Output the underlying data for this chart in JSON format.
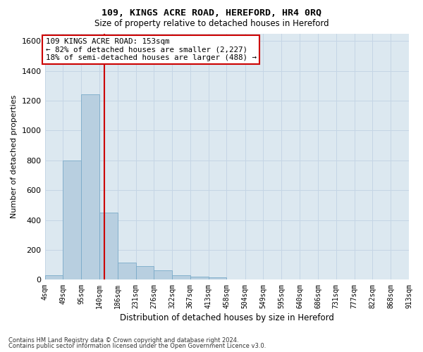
{
  "title": "109, KINGS ACRE ROAD, HEREFORD, HR4 0RQ",
  "subtitle": "Size of property relative to detached houses in Hereford",
  "xlabel": "Distribution of detached houses by size in Hereford",
  "ylabel": "Number of detached properties",
  "footer_line1": "Contains HM Land Registry data © Crown copyright and database right 2024.",
  "footer_line2": "Contains public sector information licensed under the Open Government Licence v3.0.",
  "annotation_line1": "109 KINGS ACRE ROAD: 153sqm",
  "annotation_line2": "← 82% of detached houses are smaller (2,227)",
  "annotation_line3": "18% of semi-detached houses are larger (488) →",
  "property_size": 153,
  "bar_edges": [
    4,
    49,
    95,
    140,
    186,
    231,
    276,
    322,
    367,
    413,
    458,
    504,
    549,
    595,
    640,
    686,
    731,
    777,
    822,
    868,
    913
  ],
  "bar_heights": [
    30,
    800,
    1240,
    450,
    115,
    90,
    65,
    30,
    20,
    15,
    0,
    0,
    0,
    0,
    0,
    0,
    0,
    0,
    0,
    0
  ],
  "bar_color": "#b8cfe0",
  "bar_edge_color": "#7aaac8",
  "grid_color": "#c5d5e5",
  "bg_color": "#dce8f0",
  "vline_color": "#cc0000",
  "annotation_box_edge_color": "#cc0000",
  "ylim": [
    0,
    1650
  ],
  "yticks": [
    0,
    200,
    400,
    600,
    800,
    1000,
    1200,
    1400,
    1600
  ],
  "tick_labels": [
    "4sqm",
    "49sqm",
    "95sqm",
    "140sqm",
    "186sqm",
    "231sqm",
    "276sqm",
    "322sqm",
    "367sqm",
    "413sqm",
    "458sqm",
    "504sqm",
    "549sqm",
    "595sqm",
    "640sqm",
    "686sqm",
    "731sqm",
    "777sqm",
    "822sqm",
    "868sqm",
    "913sqm"
  ]
}
